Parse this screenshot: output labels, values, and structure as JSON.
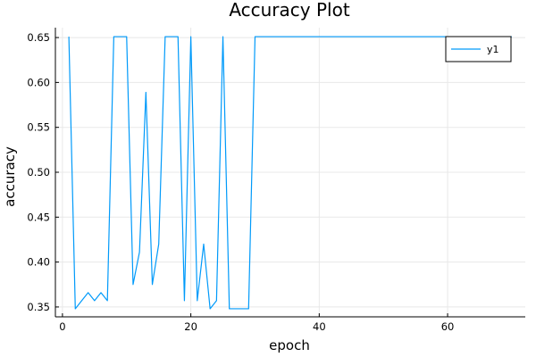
{
  "chart_data": {
    "type": "line",
    "title": "Accuracy Plot",
    "xlabel": "epoch",
    "ylabel": "accuracy",
    "xlim": [
      -1.1,
      72.1
    ],
    "ylim": [
      0.339,
      0.661
    ],
    "xticks": [
      0,
      20,
      40,
      60
    ],
    "yticks": [
      0.35,
      0.4,
      0.45,
      0.5,
      0.55,
      0.6,
      0.65
    ],
    "grid": true,
    "legend_position": "top-right",
    "colors": {
      "series": "#009AFA"
    },
    "series": [
      {
        "name": "y1",
        "x": [
          1,
          2,
          3,
          4,
          5,
          6,
          7,
          8,
          9,
          10,
          11,
          12,
          13,
          14,
          15,
          16,
          17,
          18,
          19,
          20,
          21,
          22,
          23,
          24,
          25,
          26,
          27,
          28,
          29,
          30,
          31,
          32,
          33,
          34,
          35,
          36,
          37,
          38,
          39,
          40,
          41,
          42,
          43,
          44,
          45,
          46,
          47,
          48,
          49,
          50,
          51,
          52,
          53,
          54,
          55,
          56,
          57,
          58,
          59,
          60,
          61,
          62,
          63,
          64,
          65,
          66,
          67,
          68,
          69,
          70
        ],
        "values": [
          0.651,
          0.348,
          0.357,
          0.366,
          0.357,
          0.366,
          0.357,
          0.651,
          0.651,
          0.651,
          0.375,
          0.411,
          0.589,
          0.375,
          0.42,
          0.651,
          0.651,
          0.651,
          0.357,
          0.651,
          0.357,
          0.42,
          0.348,
          0.357,
          0.651,
          0.348,
          0.348,
          0.348,
          0.348,
          0.651,
          0.651,
          0.651,
          0.651,
          0.651,
          0.651,
          0.651,
          0.651,
          0.651,
          0.651,
          0.651,
          0.651,
          0.651,
          0.651,
          0.651,
          0.651,
          0.651,
          0.651,
          0.651,
          0.651,
          0.651,
          0.651,
          0.651,
          0.651,
          0.651,
          0.651,
          0.651,
          0.651,
          0.651,
          0.651,
          0.651,
          0.651,
          0.651,
          0.651,
          0.651,
          0.651,
          0.651,
          0.651,
          0.651,
          0.651,
          0.651
        ]
      }
    ]
  }
}
